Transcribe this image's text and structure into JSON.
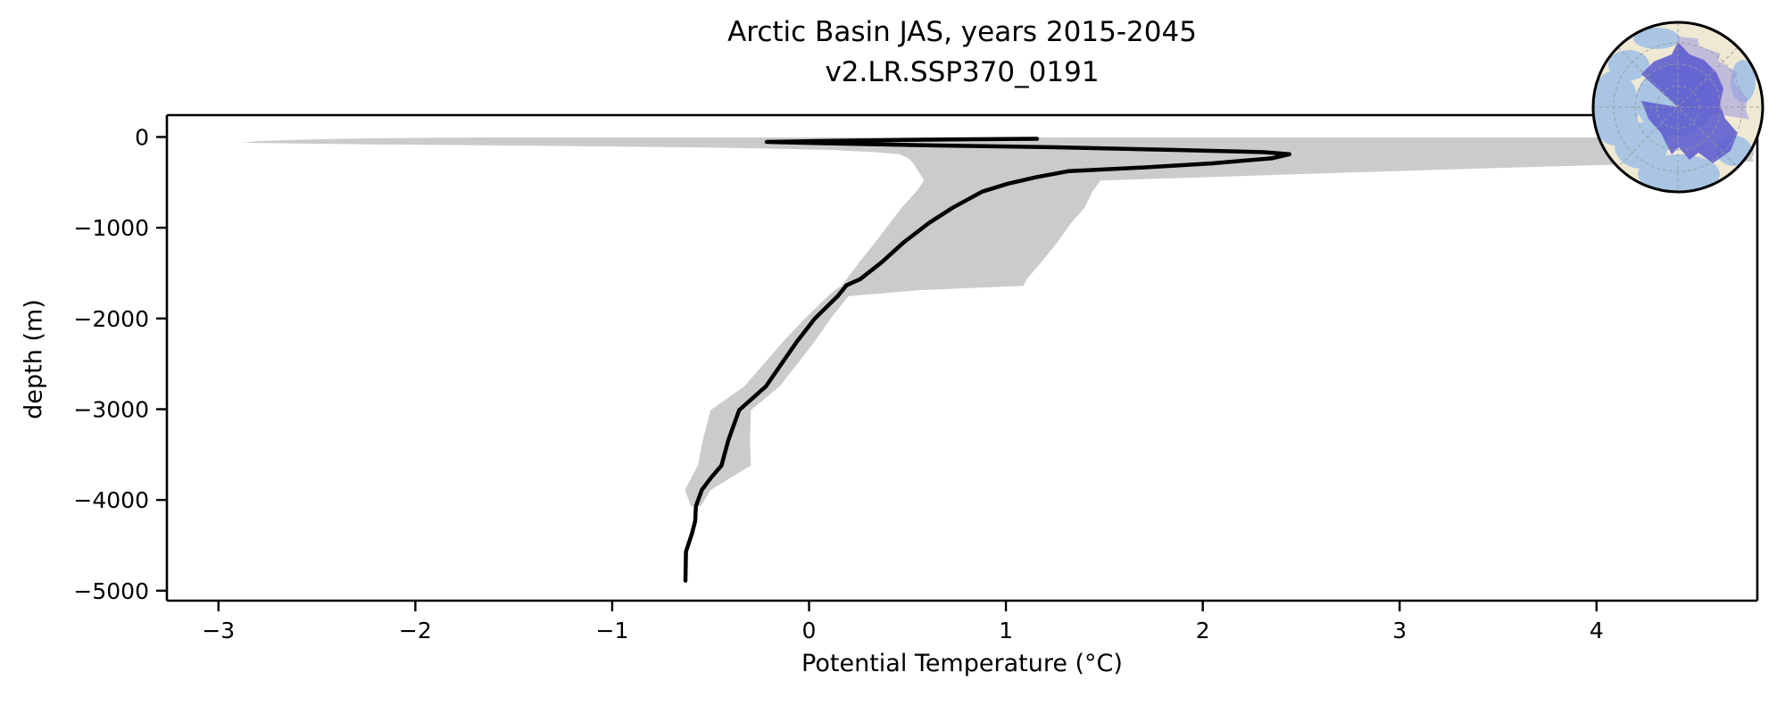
{
  "title": {
    "line1": "Arctic Basin JAS, years 2015-2045",
    "line2": "v2.LR.SSP370_0191"
  },
  "axes": {
    "xlabel": "Potential Temperature (°C)",
    "ylabel": "depth (m)",
    "xticks": {
      "values": [
        -3,
        -2,
        -1,
        0,
        1,
        2,
        3,
        4
      ],
      "labels": [
        "−3",
        "−2",
        "−1",
        "0",
        "1",
        "2",
        "3",
        "4"
      ]
    },
    "yticks": {
      "values": [
        0,
        -1000,
        -2000,
        -3000,
        -4000,
        -5000
      ],
      "labels": [
        "0",
        "−1000",
        "−2000",
        "−3000",
        "−4000",
        "−5000"
      ]
    }
  },
  "colors": {
    "background": "#ffffff",
    "axis": "#000000",
    "text": "#000000",
    "mean_line": "#000000",
    "band": "#cbcbcb",
    "band_light": "#e2e2e2",
    "map_land": "#efe9d4",
    "map_ocean": "#a9c5e3",
    "map_region_fill": "#5c5ccf",
    "map_region_light": "#9d97e0",
    "map_region_outline": "#3939c8",
    "map_graticule": "#999999",
    "map_border": "#000000"
  },
  "inset_map": {
    "name": "arctic-basin-locator",
    "description": "North polar stereographic locator globe with Arctic Basin region highlighted"
  },
  "chart_data": {
    "type": "line",
    "title": "Arctic Basin JAS, years 2015-2045 | v2.LR.SSP370_0191",
    "xlabel": "Potential Temperature (°C)",
    "ylabel": "depth (m)",
    "xlim": [
      -3.262,
      4.817
    ],
    "ylim": [
      -5110,
      241
    ],
    "grid": false,
    "legend": "none",
    "series": [
      {
        "name": "surface-outlier-light-band",
        "type": "band",
        "color": "#e2e2e2",
        "points_depth_min_max": [
          [
            -2,
            2.35,
            4.8
          ],
          [
            -45,
            2.35,
            4.8
          ]
        ]
      },
      {
        "name": "ensemble-min-max-band",
        "type": "band",
        "color": "#cbcbcb",
        "points_depth_min_max": [
          [
            -5,
            -1.7,
            4.75
          ],
          [
            -15,
            -2.25,
            4.78
          ],
          [
            -30,
            -2.6,
            4.8
          ],
          [
            -45,
            -2.8,
            4.8
          ],
          [
            -64,
            -2.88,
            4.8
          ],
          [
            -80,
            -2.3,
            4.8
          ],
          [
            -100,
            -1.2,
            4.8
          ],
          [
            -118,
            -0.45,
            4.8
          ],
          [
            -140,
            0.08,
            4.8
          ],
          [
            -165,
            0.32,
            4.8
          ],
          [
            -190,
            0.46,
            4.8
          ],
          [
            -230,
            0.5,
            4.79
          ],
          [
            -268,
            0.52,
            4.8
          ],
          [
            -292,
            0.53,
            4.3
          ],
          [
            -360,
            0.55,
            3.2
          ],
          [
            -480,
            0.585,
            1.48
          ],
          [
            -600,
            0.545,
            1.44
          ],
          [
            -780,
            0.47,
            1.4
          ],
          [
            -950,
            0.41,
            1.33
          ],
          [
            -1165,
            0.335,
            1.26
          ],
          [
            -1380,
            0.255,
            1.18
          ],
          [
            -1570,
            0.19,
            1.105
          ],
          [
            -1640,
            0.165,
            1.09
          ],
          [
            -1690,
            0.13,
            0.55
          ],
          [
            -1755,
            0.095,
            0.2
          ],
          [
            -2000,
            -0.02,
            0.11
          ],
          [
            -2250,
            -0.13,
            0.03
          ],
          [
            -2500,
            -0.23,
            -0.06
          ],
          [
            -2750,
            -0.33,
            -0.15
          ],
          [
            -3010,
            -0.5,
            -0.295
          ],
          [
            -3340,
            -0.54,
            -0.3
          ],
          [
            -3620,
            -0.565,
            -0.295
          ],
          [
            -3890,
            -0.63,
            -0.5
          ],
          [
            -4070,
            -0.6,
            -0.55
          ]
        ]
      },
      {
        "name": "ensemble-mean-profile",
        "type": "line",
        "color": "#000000",
        "points_temp_depth": [
          [
            1.158,
            -20
          ],
          [
            0.7,
            -28
          ],
          [
            0.42,
            -34
          ],
          [
            0.1,
            -43
          ],
          [
            -0.215,
            -54
          ],
          [
            0.1,
            -70
          ],
          [
            0.65,
            -93
          ],
          [
            1.25,
            -113
          ],
          [
            1.86,
            -143
          ],
          [
            2.31,
            -167
          ],
          [
            2.44,
            -190
          ],
          [
            2.35,
            -235
          ],
          [
            2.05,
            -290
          ],
          [
            1.7,
            -335
          ],
          [
            1.32,
            -376
          ],
          [
            1.15,
            -445
          ],
          [
            1.01,
            -514
          ],
          [
            0.88,
            -602
          ],
          [
            0.73,
            -779
          ],
          [
            0.61,
            -946
          ],
          [
            0.48,
            -1163
          ],
          [
            0.37,
            -1379
          ],
          [
            0.26,
            -1566
          ],
          [
            0.19,
            -1635
          ],
          [
            0.145,
            -1755
          ],
          [
            0.03,
            -2000
          ],
          [
            -0.06,
            -2250
          ],
          [
            -0.14,
            -2500
          ],
          [
            -0.22,
            -2750
          ],
          [
            -0.355,
            -3010
          ],
          [
            -0.41,
            -3340
          ],
          [
            -0.445,
            -3620
          ],
          [
            -0.5,
            -3760
          ],
          [
            -0.545,
            -3890
          ],
          [
            -0.575,
            -4070
          ],
          [
            -0.578,
            -4230
          ],
          [
            -0.595,
            -4370
          ],
          [
            -0.625,
            -4570
          ],
          [
            -0.628,
            -4890
          ]
        ]
      }
    ]
  }
}
